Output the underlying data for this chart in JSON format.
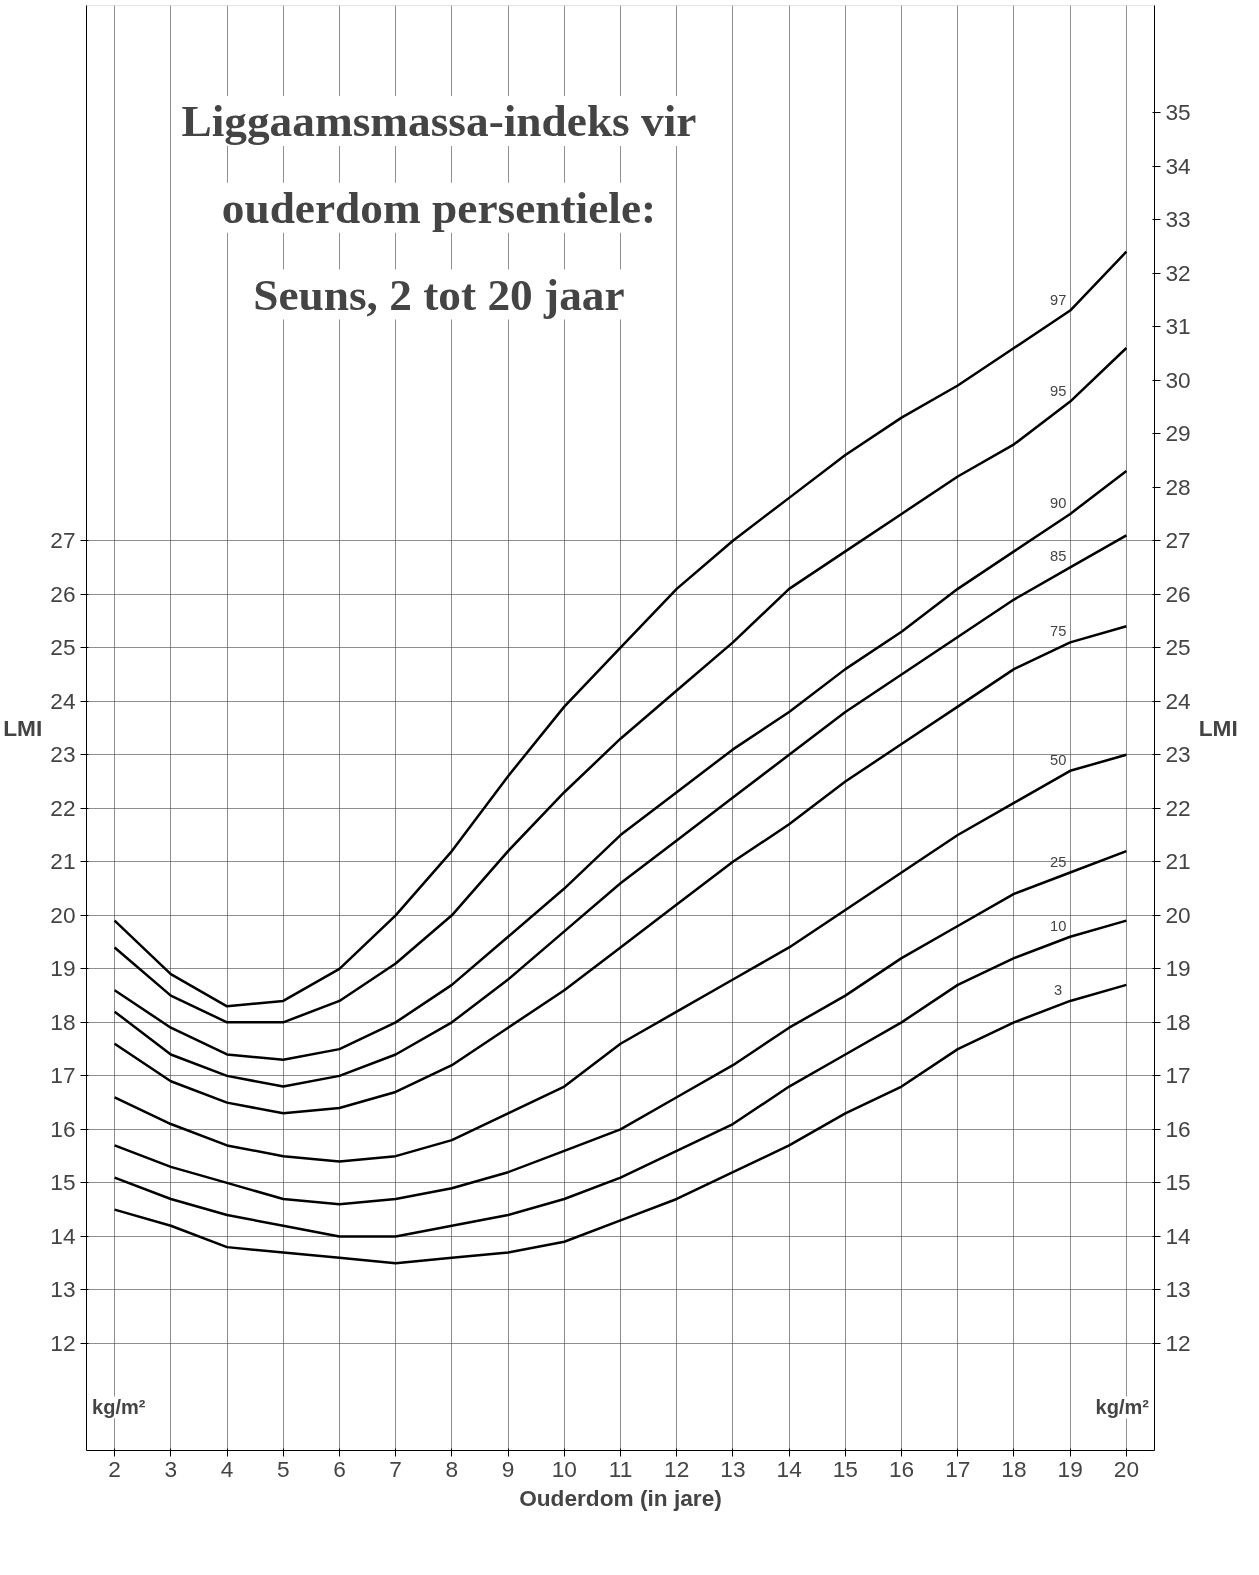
{
  "chart_data": {
    "type": "line",
    "title": "Liggaamsmassa-indeks vir ouderdom persentiele: Seuns, 2 tot 20 jaar",
    "xlabel": "Ouderdom (in jare)",
    "ylabel": "LMI",
    "y2label": "LMI",
    "annotations": [
      "kg/m²",
      "kg/m²"
    ],
    "x": [
      2,
      3,
      4,
      5,
      6,
      7,
      8,
      9,
      10,
      11,
      12,
      13,
      14,
      15,
      16,
      17,
      18,
      19,
      20
    ],
    "series": [
      {
        "name": "97",
        "color": "#000000",
        "values": [
          19.9,
          18.9,
          18.3,
          18.4,
          19.0,
          20.0,
          21.2,
          22.6,
          23.9,
          25.0,
          26.1,
          27.0,
          27.8,
          28.6,
          29.3,
          29.9,
          30.6,
          31.3,
          32.4
        ]
      },
      {
        "name": "95",
        "color": "#000000",
        "values": [
          19.4,
          18.5,
          18.0,
          18.0,
          18.4,
          19.1,
          20.0,
          21.2,
          22.3,
          23.3,
          24.2,
          25.1,
          26.1,
          26.8,
          27.5,
          28.2,
          28.8,
          29.6,
          30.6
        ]
      },
      {
        "name": "90",
        "color": "#000000",
        "values": [
          18.6,
          17.9,
          17.4,
          17.3,
          17.5,
          18.0,
          18.7,
          19.6,
          20.5,
          21.5,
          22.3,
          23.1,
          23.8,
          24.6,
          25.3,
          26.1,
          26.8,
          27.5,
          28.3
        ]
      },
      {
        "name": "85",
        "color": "#000000",
        "values": [
          18.2,
          17.4,
          17.0,
          16.8,
          17.0,
          17.4,
          18.0,
          18.8,
          19.7,
          20.6,
          21.4,
          22.2,
          23.0,
          23.8,
          24.5,
          25.2,
          25.9,
          26.5,
          27.1
        ]
      },
      {
        "name": "75",
        "color": "#000000",
        "values": [
          17.6,
          16.9,
          16.5,
          16.3,
          16.4,
          16.7,
          17.2,
          17.9,
          18.6,
          19.4,
          20.2,
          21.0,
          21.7,
          22.5,
          23.2,
          23.9,
          24.6,
          25.1,
          25.4
        ]
      },
      {
        "name": "50",
        "color": "#000000",
        "values": [
          16.6,
          16.1,
          15.7,
          15.5,
          15.4,
          15.5,
          15.8,
          16.3,
          16.8,
          17.6,
          18.2,
          18.8,
          19.4,
          20.1,
          20.8,
          21.5,
          22.1,
          22.7,
          23.0
        ]
      },
      {
        "name": "25",
        "color": "#000000",
        "values": [
          15.7,
          15.3,
          15.0,
          14.7,
          14.6,
          14.7,
          14.9,
          15.2,
          15.6,
          16.0,
          16.6,
          17.2,
          17.9,
          18.5,
          19.2,
          19.8,
          20.4,
          20.8,
          21.2
        ]
      },
      {
        "name": "10",
        "color": "#000000",
        "values": [
          15.1,
          14.7,
          14.4,
          14.2,
          14.0,
          14.0,
          14.2,
          14.4,
          14.7,
          15.1,
          15.6,
          16.1,
          16.8,
          17.4,
          18.0,
          18.7,
          19.2,
          19.6,
          19.9
        ]
      },
      {
        "name": "3",
        "color": "#000000",
        "values": [
          14.5,
          14.2,
          13.8,
          13.7,
          13.6,
          13.5,
          13.6,
          13.7,
          13.9,
          14.3,
          14.7,
          15.2,
          15.7,
          16.3,
          16.8,
          17.5,
          18.0,
          18.4,
          18.7
        ]
      }
    ],
    "xlim": [
      1.5,
      20.5
    ],
    "xticks": [
      2,
      3,
      4,
      5,
      6,
      7,
      8,
      9,
      10,
      11,
      12,
      13,
      14,
      15,
      16,
      17,
      18,
      19,
      20
    ],
    "ylim": [
      10,
      37
    ],
    "yticks": [
      12,
      13,
      14,
      15,
      16,
      17,
      18,
      19,
      20,
      21,
      22,
      23,
      24,
      25,
      26,
      27
    ],
    "y2lim": [
      10,
      37
    ],
    "y2ticks": [
      12,
      13,
      14,
      15,
      16,
      17,
      18,
      19,
      20,
      21,
      22,
      23,
      24,
      25,
      26,
      27,
      28,
      29,
      30,
      31,
      32,
      33,
      34,
      35
    ],
    "grid": true,
    "marker": "none",
    "line_style": "solid"
  }
}
